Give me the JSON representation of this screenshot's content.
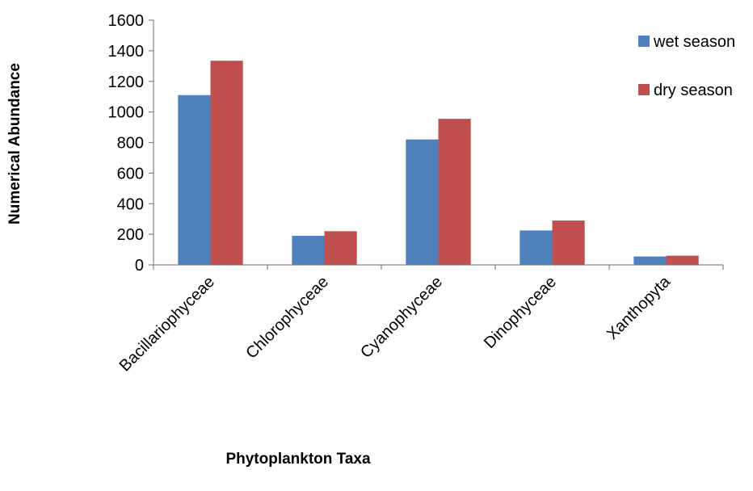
{
  "chart_data": {
    "type": "bar",
    "title": "",
    "xlabel": "Phytoplankton Taxa",
    "ylabel": "Numerical Abundance",
    "categories": [
      "Bacillariophyceae",
      "Chlorophyceae",
      "Cyanophyceae",
      "Dinophyceae",
      "Xanthopyta"
    ],
    "series": [
      {
        "name": "wet season",
        "color": "#4f81bd",
        "values": [
          1110,
          190,
          820,
          225,
          55
        ]
      },
      {
        "name": "dry season",
        "color": "#c0504d",
        "values": [
          1335,
          220,
          955,
          290,
          60
        ]
      }
    ],
    "ylim": [
      0,
      1600
    ],
    "yticks": [
      0,
      200,
      400,
      600,
      800,
      1000,
      1200,
      1400,
      1600
    ],
    "grid": false,
    "legend_position": "top-right"
  }
}
